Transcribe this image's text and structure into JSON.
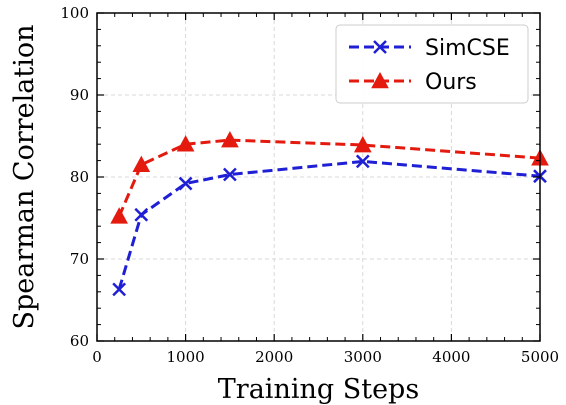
{
  "chart_data": {
    "type": "line",
    "xlabel": "Training Steps",
    "ylabel": "Spearman Correlation",
    "xlim": [
      0,
      5000
    ],
    "ylim": [
      60,
      100
    ],
    "xticks": [
      0,
      1000,
      2000,
      3000,
      4000,
      5000
    ],
    "yticks": [
      60,
      70,
      80,
      90,
      100
    ],
    "grid": true,
    "legend_position": "top-right",
    "series": [
      {
        "name": "SimCSE",
        "marker": "x",
        "color": "#1f1fd6",
        "x": [
          250,
          500,
          1000,
          1500,
          3000,
          5000
        ],
        "y": [
          66.3,
          75.4,
          79.2,
          80.3,
          81.9,
          80.1
        ]
      },
      {
        "name": "Ours",
        "marker": "triangle",
        "color": "#e41a0e",
        "x": [
          250,
          500,
          1000,
          1500,
          3000,
          5000
        ],
        "y": [
          75.2,
          81.5,
          84.0,
          84.5,
          83.9,
          82.3
        ]
      }
    ]
  }
}
